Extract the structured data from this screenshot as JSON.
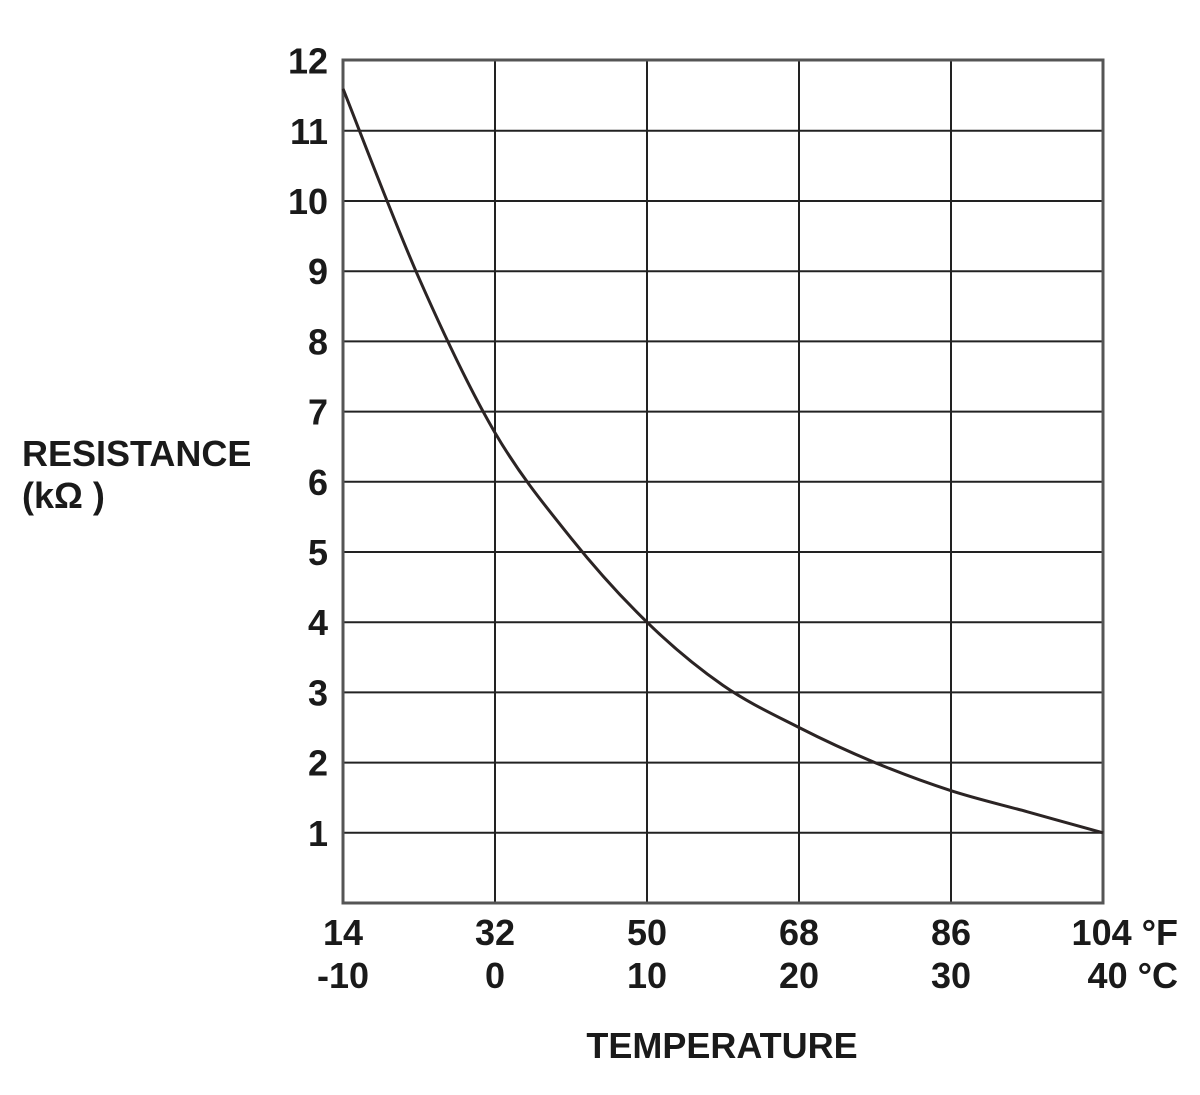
{
  "chart_data": {
    "type": "line",
    "xlabel": "TEMPERATURE",
    "ylabel": "RESISTANCE",
    "ylabel_unit": "(kΩ )",
    "x_unit": "°C",
    "xlim": [
      -10,
      40
    ],
    "ylim": [
      0,
      12
    ],
    "x_ticks": [
      -10,
      0,
      10,
      20,
      30,
      40
    ],
    "x_tick_labels_f": [
      "14",
      "32",
      "50",
      "68",
      "86",
      "104 °F"
    ],
    "x_tick_labels_c": [
      "-10",
      "0",
      "10",
      "20",
      "30",
      "40 °C"
    ],
    "y_ticks": [
      1,
      2,
      3,
      4,
      5,
      6,
      7,
      8,
      9,
      10,
      11,
      12
    ],
    "y_tick_labels": [
      "1",
      "2",
      "3",
      "4",
      "5",
      "6",
      "7",
      "8",
      "9",
      "10",
      "11",
      "12"
    ],
    "grid": true,
    "series": [
      {
        "x": [
          -10,
          -5,
          0,
          5,
          10,
          15,
          20,
          25,
          30,
          35,
          40
        ],
        "y": [
          11.6,
          8.9,
          6.7,
          5.2,
          4.0,
          3.1,
          2.5,
          2.0,
          1.6,
          1.3,
          1.0
        ]
      }
    ],
    "colors": {
      "curve": "#2b2424",
      "grid": "#222222",
      "text": "#1a1a1a"
    }
  }
}
